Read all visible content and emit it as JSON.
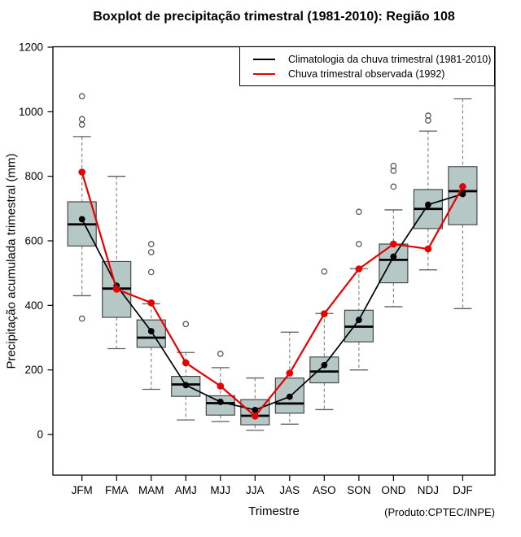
{
  "title": "Boxplot de precipitação trimestral (1981-2010): Região 108",
  "y_axis_label": "Precipitação acumulada trimestral (mm)",
  "x_axis_label": "Trimestre",
  "credit": "(Produto:CPTEC/INPE)",
  "legend": [
    {
      "label": "Climatologia da chuva trimestral (1981-2010)",
      "color": "#000000"
    },
    {
      "label": "Chuva trimestral observada (1992)",
      "color": "#e60000"
    }
  ],
  "colors": {
    "box_fill": "#b6c8c5",
    "box_border": "#3c3c3c",
    "median": "#000000",
    "whisker": "#808080",
    "cap": "#5f5f5f",
    "outlier": "#4f4f4f",
    "climatology_line": "#000000",
    "observed_line": "#e60000",
    "frame": "#000000"
  },
  "chart_data": {
    "type": "boxplot",
    "title": "Boxplot de precipitação trimestral (1981-2010): Região 108",
    "xlabel": "Trimestre",
    "ylabel": "Precipitação acumulada trimestral (mm)",
    "ylim": [
      0,
      1200
    ],
    "y_ticks": [
      0,
      200,
      400,
      600,
      800,
      1000,
      1200
    ],
    "grid": false,
    "legend_position": "top-right-inside",
    "categories": [
      "JFM",
      "FMA",
      "MAM",
      "AMJ",
      "MJJ",
      "JJA",
      "JAS",
      "ASO",
      "SON",
      "OND",
      "NDJ",
      "DJF"
    ],
    "boxes": [
      {
        "category": "JFM",
        "whisker_low": 430,
        "q1": 584,
        "median": 651,
        "q3": 721,
        "whisker_high": 923,
        "outliers": [
          1048,
          977,
          960,
          359
        ]
      },
      {
        "category": "FMA",
        "whisker_low": 266,
        "q1": 363,
        "median": 452,
        "q3": 536,
        "whisker_high": 800,
        "outliers": []
      },
      {
        "category": "MAM",
        "whisker_low": 140,
        "q1": 270,
        "median": 300,
        "q3": 355,
        "whisker_high": 405,
        "outliers": [
          590,
          565,
          503
        ]
      },
      {
        "category": "AMJ",
        "whisker_low": 45,
        "q1": 118,
        "median": 155,
        "q3": 180,
        "whisker_high": 254,
        "outliers": [
          342
        ]
      },
      {
        "category": "MJJ",
        "whisker_low": 40,
        "q1": 60,
        "median": 97,
        "q3": 120,
        "whisker_high": 207,
        "outliers": [
          250
        ]
      },
      {
        "category": "JJA",
        "whisker_low": 13,
        "q1": 30,
        "median": 58,
        "q3": 108,
        "whisker_high": 175,
        "outliers": []
      },
      {
        "category": "JAS",
        "whisker_low": 32,
        "q1": 66,
        "median": 96,
        "q3": 175,
        "whisker_high": 317,
        "outliers": []
      },
      {
        "category": "ASO",
        "whisker_low": 77,
        "q1": 160,
        "median": 195,
        "q3": 240,
        "whisker_high": 375,
        "outliers": [
          505
        ]
      },
      {
        "category": "SON",
        "whisker_low": 200,
        "q1": 287,
        "median": 334,
        "q3": 385,
        "whisker_high": 514,
        "outliers": [
          690,
          590
        ]
      },
      {
        "category": "OND",
        "whisker_low": 396,
        "q1": 470,
        "median": 541,
        "q3": 590,
        "whisker_high": 696,
        "outliers": [
          832,
          817,
          768
        ]
      },
      {
        "category": "NDJ",
        "whisker_low": 510,
        "q1": 638,
        "median": 699,
        "q3": 759,
        "whisker_high": 940,
        "outliers": [
          988,
          973
        ]
      },
      {
        "category": "DJF",
        "whisker_low": 390,
        "q1": 650,
        "median": 754,
        "q3": 830,
        "whisker_high": 1040,
        "outliers": []
      }
    ],
    "series": [
      {
        "name": "Climatologia da chuva trimestral (1981-2010)",
        "type": "line+dot",
        "color": "#000000",
        "values": [
          667,
          461,
          320,
          153,
          101,
          76,
          117,
          215,
          355,
          551,
          712,
          745
        ]
      },
      {
        "name": "Chuva trimestral observada (1992)",
        "type": "line+dot",
        "color": "#e60000",
        "values": [
          813,
          450,
          408,
          222,
          150,
          57,
          190,
          374,
          513,
          590,
          575,
          768
        ]
      }
    ]
  }
}
